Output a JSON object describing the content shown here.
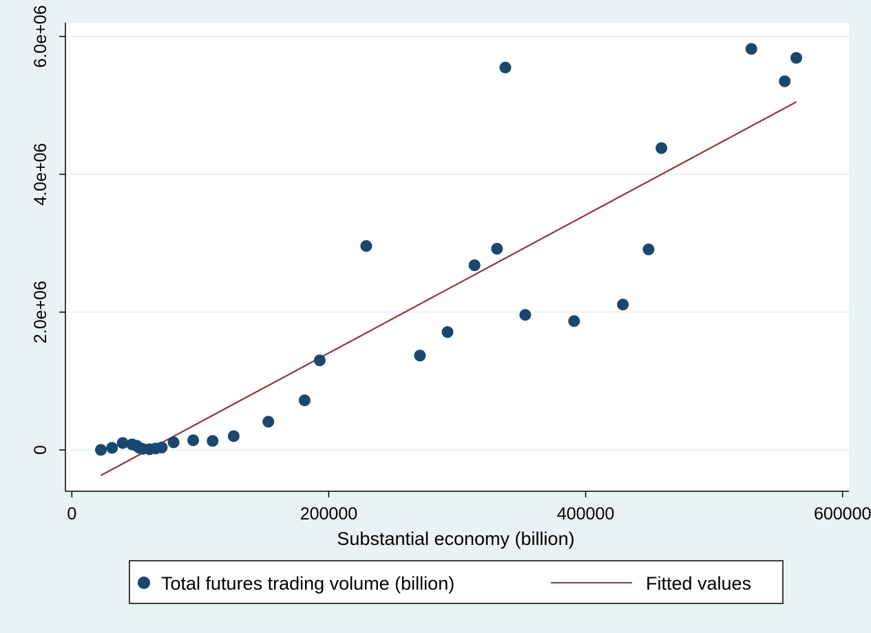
{
  "chart_data": {
    "type": "scatter",
    "title": "",
    "xlabel": "Substantial economy (billion)",
    "ylabel": "",
    "xlim": [
      -5000,
      605000
    ],
    "ylim": [
      -600000,
      6200000
    ],
    "x_ticks": [
      0,
      200000,
      400000,
      600000
    ],
    "x_tick_labels": [
      "0",
      "200000",
      "400000",
      "600000"
    ],
    "y_ticks": [
      0,
      2000000,
      4000000,
      6000000
    ],
    "y_tick_labels": [
      "0",
      "2.0e+06",
      "4.0e+06",
      "6.0e+06"
    ],
    "grid": "horizontal",
    "legend_position": "bottom",
    "series": [
      {
        "name": "Total futures trading volume (billion)",
        "type": "scatter",
        "color": "#1a476f",
        "points": [
          [
            22600,
            0
          ],
          [
            31300,
            30000
          ],
          [
            39600,
            100000
          ],
          [
            46900,
            80000
          ],
          [
            50500,
            60000
          ],
          [
            52500,
            30000
          ],
          [
            55000,
            15000
          ],
          [
            60500,
            10000
          ],
          [
            65200,
            20000
          ],
          [
            70000,
            35000
          ],
          [
            79200,
            110000
          ],
          [
            94500,
            140000
          ],
          [
            109600,
            130000
          ],
          [
            126000,
            200000
          ],
          [
            153000,
            410000
          ],
          [
            181200,
            720000
          ],
          [
            193000,
            1300000
          ],
          [
            229200,
            2960000
          ],
          [
            271000,
            1370000
          ],
          [
            292500,
            1710000
          ],
          [
            313500,
            2680000
          ],
          [
            331000,
            2920000
          ],
          [
            337500,
            5550000
          ],
          [
            353000,
            1960000
          ],
          [
            391000,
            1870000
          ],
          [
            429000,
            2110000
          ],
          [
            449000,
            2910000
          ],
          [
            459000,
            4380000
          ],
          [
            529000,
            5820000
          ],
          [
            555000,
            5350000
          ],
          [
            564000,
            5690000
          ]
        ]
      },
      {
        "name": "Fitted values",
        "type": "line",
        "color": "#90353b",
        "points": [
          [
            22600,
            -370000
          ],
          [
            564000,
            5050000
          ]
        ]
      }
    ]
  }
}
